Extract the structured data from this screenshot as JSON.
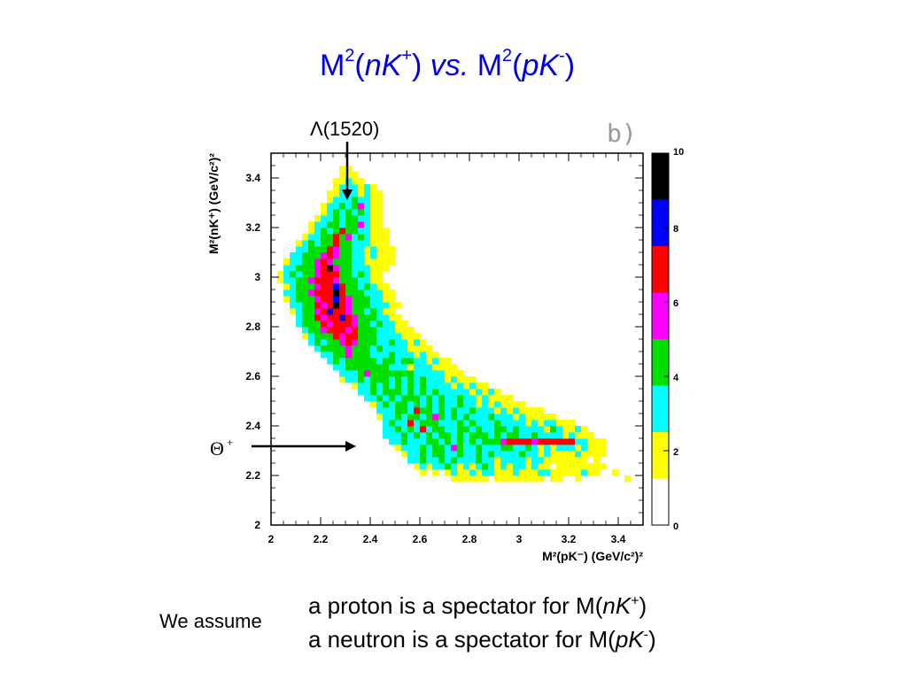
{
  "title": {
    "m1": "M",
    "exp1": "2",
    "p1": "(",
    "nk": "nK",
    "plus": "+",
    "p2": ")",
    "vs": "vs.",
    "m2": "M",
    "exp2": "2",
    "p3": "(",
    "pk": "pK",
    "minus": "-",
    "p4": ")"
  },
  "annotations": {
    "lambda": "Λ(1520)",
    "panel": "b)",
    "theta": "Θ",
    "theta_sup": "+"
  },
  "colors": {
    "title": "#0000e0",
    "palette": [
      "#ffffff",
      "#ffff00",
      "#00ffff",
      "#00e000",
      "#ff00ff",
      "#ff0000",
      "#0000ff",
      "#000000"
    ]
  },
  "footer": {
    "assume": "We assume",
    "line1_pre": "a proton is a spectator for M(",
    "line1_it": "nK",
    "line1_sup": "+",
    "line1_post": ")",
    "line2_pre": "a neutron is a spectator for M(",
    "line2_it": "pK",
    "line2_sup": "-",
    "line2_post": ")"
  },
  "chart_data": {
    "type": "heatmap",
    "xlabel": "M²(pK⁻) (GeV/c²)²",
    "ylabel": "M²(nK⁺) (GeV/c²)²",
    "xlim": [
      2,
      3.5
    ],
    "ylim": [
      2,
      3.5
    ],
    "xticks": [
      "2",
      "2.2",
      "2.4",
      "2.6",
      "2.8",
      "3",
      "3.2",
      "3.4"
    ],
    "yticks": [
      "2",
      "2.2",
      "2.4",
      "2.6",
      "2.8",
      "3",
      "3.2",
      "3.4"
    ],
    "colorbar": {
      "min": 0,
      "max": 10,
      "ticks": [
        "0",
        "2",
        "4",
        "6",
        "8",
        "10"
      ]
    },
    "bin_width": 0.025,
    "note": "counts are estimated per 0.025 x 0.025 bin; rows start at y=2.175",
    "rows": [
      {
        "y": 2.175,
        "x0": 2.725,
        "counts": [
          1,
          1,
          1,
          1,
          1,
          1,
          0,
          1,
          1,
          1,
          1,
          1,
          1,
          1,
          1,
          0,
          1,
          1,
          0,
          0,
          1,
          0,
          0,
          0,
          0,
          0,
          0,
          0,
          1
        ]
      },
      {
        "y": 2.2,
        "x0": 2.6,
        "counts": [
          1,
          0,
          1,
          0,
          1,
          2,
          1,
          1,
          2,
          1,
          2,
          2,
          1,
          1,
          1,
          2,
          1,
          1,
          1,
          2,
          2,
          1,
          1,
          1,
          1,
          1,
          2,
          1,
          1,
          0,
          0,
          1
        ]
      },
      {
        "y": 2.225,
        "x0": 2.575,
        "counts": [
          1,
          2,
          1,
          2,
          2,
          3,
          2,
          1,
          2,
          1,
          2,
          3,
          2,
          1,
          2,
          1,
          2,
          2,
          1,
          2,
          1,
          1,
          0,
          1,
          1,
          1,
          1,
          1,
          1,
          1,
          1
        ]
      },
      {
        "y": 2.25,
        "x0": 2.55,
        "counts": [
          2,
          2,
          3,
          2,
          2,
          3,
          2,
          4,
          2,
          2,
          2,
          3,
          2,
          2,
          1,
          2,
          2,
          2,
          2,
          1,
          2,
          2,
          1,
          1,
          1,
          1,
          1,
          1,
          1,
          0,
          1
        ]
      },
      {
        "y": 2.275,
        "x0": 2.525,
        "counts": [
          1,
          2,
          2,
          3,
          2,
          3,
          4,
          2,
          2,
          3,
          2,
          2,
          3,
          2,
          3,
          2,
          2,
          2,
          2,
          3,
          2,
          2,
          1,
          2,
          1,
          1,
          1,
          1,
          2,
          1,
          1,
          1,
          1
        ]
      },
      {
        "y": 2.3,
        "x0": 2.5,
        "counts": [
          1,
          2,
          2,
          2,
          3,
          2,
          4,
          3,
          2,
          5,
          3,
          2,
          2,
          3,
          2,
          2,
          2,
          3,
          3,
          2,
          2,
          3,
          2,
          1,
          2,
          1,
          2,
          2,
          2,
          1,
          2,
          1,
          1,
          1
        ]
      },
      {
        "y": 2.325,
        "x0": 2.475,
        "counts": [
          2,
          2,
          3,
          2,
          2,
          2,
          3,
          3,
          2,
          3,
          2,
          4,
          2,
          3,
          2,
          3,
          4,
          3,
          5,
          6,
          6,
          6,
          6,
          5,
          6,
          6,
          6,
          6,
          6,
          6,
          2,
          2,
          1,
          1,
          1
        ]
      },
      {
        "y": 2.35,
        "x0": 2.45,
        "counts": [
          2,
          2,
          2,
          3,
          2,
          3,
          2,
          4,
          2,
          3,
          3,
          2,
          3,
          2,
          3,
          4,
          3,
          2,
          3,
          2,
          3,
          3,
          2,
          2,
          3,
          2,
          2,
          2,
          2,
          1,
          2,
          1,
          1,
          1
        ]
      },
      {
        "y": 2.375,
        "x0": 2.45,
        "counts": [
          2,
          2,
          3,
          2,
          3,
          2,
          6,
          2,
          3,
          4,
          2,
          2,
          3,
          3,
          2,
          3,
          2,
          2,
          3,
          3,
          2,
          3,
          2,
          2,
          2,
          2,
          1,
          3,
          2,
          1,
          1,
          2,
          1
        ]
      },
      {
        "y": 2.4,
        "x0": 2.45,
        "counts": [
          2,
          3,
          2,
          2,
          7,
          2,
          3,
          3,
          3,
          2,
          2,
          2,
          3,
          2,
          3,
          2,
          2,
          2,
          3,
          2,
          2,
          2,
          2,
          1,
          2,
          1,
          2,
          2,
          1,
          1,
          1
        ]
      },
      {
        "y": 2.425,
        "x0": 2.425,
        "counts": [
          1,
          2,
          2,
          3,
          2,
          3,
          3,
          2,
          3,
          5,
          3,
          2,
          3,
          2,
          3,
          2,
          2,
          2,
          3,
          2,
          2,
          2,
          1,
          2,
          1,
          1,
          1,
          1,
          1
        ]
      },
      {
        "y": 2.45,
        "x0": 2.425,
        "counts": [
          2,
          2,
          2,
          3,
          3,
          2,
          6,
          3,
          4,
          2,
          3,
          2,
          3,
          2,
          2,
          3,
          2,
          2,
          2,
          1,
          2,
          1,
          2,
          1,
          1,
          1,
          1
        ]
      },
      {
        "y": 2.475,
        "x0": 2.4,
        "counts": [
          1,
          2,
          3,
          2,
          3,
          4,
          2,
          3,
          2,
          3,
          2,
          3,
          2,
          2,
          3,
          2,
          2,
          1,
          2,
          1,
          2,
          1,
          1,
          1,
          1
        ]
      },
      {
        "y": 2.5,
        "x0": 2.375,
        "counts": [
          2,
          2,
          3,
          2,
          3,
          2,
          3,
          4,
          3,
          2,
          3,
          2,
          3,
          2,
          2,
          3,
          2,
          2,
          1,
          2,
          1,
          1,
          1,
          1
        ]
      },
      {
        "y": 2.525,
        "x0": 2.35,
        "counts": [
          2,
          2,
          3,
          2,
          3,
          3,
          3,
          2,
          3,
          2,
          4,
          2,
          3,
          2,
          2,
          2,
          2,
          2,
          1,
          2,
          1,
          2,
          1
        ]
      },
      {
        "y": 2.55,
        "x0": 2.325,
        "counts": [
          1,
          2,
          2,
          3,
          2,
          3,
          2,
          3,
          2,
          3,
          2,
          3,
          2,
          2,
          2,
          2,
          1,
          2,
          1,
          2,
          1,
          1
        ]
      },
      {
        "y": 2.575,
        "x0": 2.275,
        "counts": [
          1,
          2,
          2,
          3,
          2,
          3,
          4,
          3,
          2,
          3,
          2,
          3,
          2,
          3,
          2,
          2,
          2,
          1,
          2,
          1,
          1,
          1
        ]
      },
      {
        "y": 2.6,
        "x0": 2.275,
        "counts": [
          2,
          2,
          2,
          3,
          5,
          3,
          4,
          3,
          3,
          3,
          4,
          3,
          2,
          2,
          2,
          2,
          2,
          1,
          1,
          1
        ]
      },
      {
        "y": 2.625,
        "x0": 2.25,
        "counts": [
          2,
          2,
          3,
          3,
          3,
          3,
          4,
          3,
          3,
          2,
          2,
          2,
          1,
          2,
          2,
          2,
          1,
          1,
          1,
          1
        ]
      },
      {
        "y": 2.65,
        "x0": 2.225,
        "counts": [
          2,
          3,
          2,
          3,
          4,
          3,
          3,
          4,
          2,
          3,
          3,
          2,
          3,
          3,
          2,
          2,
          1,
          2,
          1,
          1
        ]
      },
      {
        "y": 2.675,
        "x0": 2.2,
        "counts": [
          2,
          2,
          3,
          4,
          5,
          3,
          3,
          3,
          2,
          2,
          2,
          3,
          2,
          2,
          2,
          1,
          2,
          1,
          1
        ]
      },
      {
        "y": 2.7,
        "x0": 2.175,
        "counts": [
          2,
          3,
          3,
          3,
          4,
          5,
          4,
          3,
          3,
          2,
          3,
          2,
          2,
          2,
          2,
          1,
          1,
          1,
          1
        ]
      },
      {
        "y": 2.725,
        "x0": 2.15,
        "counts": [
          2,
          3,
          2,
          3,
          4,
          5,
          6,
          5,
          4,
          3,
          3,
          2,
          2,
          3,
          2,
          2,
          1,
          2,
          1
        ]
      },
      {
        "y": 2.75,
        "x0": 2.125,
        "counts": [
          1,
          2,
          3,
          3,
          4,
          6,
          5,
          7,
          6,
          4,
          3,
          3,
          2,
          2,
          2,
          2,
          1,
          1,
          1
        ]
      },
      {
        "y": 2.775,
        "x0": 2.125,
        "counts": [
          2,
          3,
          4,
          5,
          6,
          7,
          6,
          5,
          6,
          4,
          3,
          3,
          2,
          2,
          2,
          1,
          1,
          1
        ]
      },
      {
        "y": 2.8,
        "x0": 2.1,
        "counts": [
          2,
          3,
          3,
          4,
          6,
          5,
          7,
          6,
          7,
          5,
          4,
          3,
          2,
          3,
          2,
          2,
          1,
          1
        ]
      },
      {
        "y": 2.825,
        "x0": 2.1,
        "counts": [
          2,
          3,
          4,
          6,
          5,
          7,
          6,
          8,
          6,
          5,
          4,
          3,
          3,
          2,
          2,
          1,
          1
        ]
      },
      {
        "y": 2.85,
        "x0": 2.075,
        "counts": [
          1,
          2,
          3,
          4,
          5,
          6,
          8,
          7,
          6,
          5,
          4,
          3,
          2,
          3,
          2,
          1,
          1
        ]
      },
      {
        "y": 2.875,
        "x0": 2.075,
        "counts": [
          2,
          2,
          3,
          4,
          6,
          5,
          7,
          9,
          6,
          5,
          3,
          4,
          3,
          2,
          2,
          2,
          1,
          1
        ]
      },
      {
        "y": 2.9,
        "x0": 2.05,
        "counts": [
          1,
          2,
          3,
          3,
          4,
          5,
          6,
          7,
          8,
          6,
          5,
          4,
          3,
          3,
          2,
          2,
          1,
          1
        ]
      },
      {
        "y": 2.925,
        "x0": 2.05,
        "counts": [
          2,
          2,
          3,
          4,
          5,
          6,
          7,
          6,
          9,
          6,
          4,
          3,
          3,
          2,
          2,
          2,
          1,
          1
        ]
      },
      {
        "y": 2.95,
        "x0": 2.05,
        "counts": [
          1,
          2,
          3,
          3,
          4,
          5,
          6,
          7,
          8,
          6,
          4,
          3,
          2,
          3,
          2,
          1,
          1
        ]
      },
      {
        "y": 2.975,
        "x0": 2.025,
        "counts": [
          1,
          2,
          2,
          3,
          4,
          5,
          6,
          7,
          6,
          5,
          4,
          3,
          3,
          2,
          2,
          1,
          1
        ]
      },
      {
        "y": 3.0,
        "x0": 2.025,
        "counts": [
          1,
          2,
          3,
          2,
          3,
          4,
          5,
          6,
          7,
          6,
          4,
          3,
          2,
          3,
          2,
          1,
          1
        ]
      },
      {
        "y": 3.025,
        "x0": 2.05,
        "counts": [
          2,
          2,
          3,
          4,
          3,
          5,
          6,
          9,
          5,
          4,
          3,
          2,
          2,
          2,
          1,
          1,
          1
        ]
      },
      {
        "y": 3.05,
        "x0": 2.05,
        "counts": [
          1,
          2,
          2,
          3,
          4,
          5,
          6,
          5,
          4,
          3,
          3,
          2,
          2,
          1,
          1,
          1,
          1,
          1
        ]
      },
      {
        "y": 3.075,
        "x0": 2.075,
        "counts": [
          2,
          2,
          3,
          3,
          4,
          5,
          6,
          5,
          3,
          3,
          2,
          2,
          1,
          2,
          1,
          1,
          1
        ]
      },
      {
        "y": 3.1,
        "x0": 2.1,
        "counts": [
          2,
          2,
          3,
          3,
          4,
          6,
          5,
          3,
          3,
          2,
          2,
          1,
          2,
          1,
          1,
          1
        ]
      },
      {
        "y": 3.125,
        "x0": 2.1,
        "counts": [
          1,
          2,
          3,
          2,
          4,
          3,
          6,
          3,
          4,
          2,
          2,
          2,
          1,
          1,
          1
        ]
      },
      {
        "y": 3.15,
        "x0": 2.125,
        "counts": [
          1,
          2,
          2,
          3,
          3,
          6,
          3,
          5,
          2,
          3,
          2,
          1,
          1,
          1
        ]
      },
      {
        "y": 3.175,
        "x0": 2.15,
        "counts": [
          1,
          2,
          3,
          2,
          4,
          6,
          3,
          3,
          2,
          2,
          1,
          1,
          1
        ]
      },
      {
        "y": 3.2,
        "x0": 2.15,
        "counts": [
          1,
          2,
          2,
          3,
          3,
          2,
          3,
          3,
          5,
          2,
          1,
          1
        ]
      },
      {
        "y": 3.225,
        "x0": 2.175,
        "counts": [
          1,
          2,
          2,
          3,
          2,
          3,
          4,
          2,
          2,
          1,
          1
        ]
      },
      {
        "y": 3.25,
        "x0": 2.2,
        "counts": [
          1,
          2,
          3,
          2,
          3,
          2,
          3,
          2,
          1,
          1
        ]
      },
      {
        "y": 3.275,
        "x0": 2.2,
        "counts": [
          1,
          2,
          2,
          3,
          2,
          3,
          5,
          2,
          1,
          1
        ]
      },
      {
        "y": 3.3,
        "x0": 2.225,
        "counts": [
          1,
          2,
          2,
          2,
          3,
          2,
          2,
          1,
          1
        ]
      },
      {
        "y": 3.325,
        "x0": 2.225,
        "counts": [
          1,
          1,
          2,
          2,
          2,
          1,
          2,
          1,
          1
        ]
      },
      {
        "y": 3.35,
        "x0": 2.25,
        "counts": [
          1,
          2,
          2,
          2,
          1,
          2,
          1
        ]
      },
      {
        "y": 3.375,
        "x0": 2.25,
        "counts": [
          1,
          1,
          2,
          1,
          1
        ]
      },
      {
        "y": 3.4,
        "x0": 2.275,
        "counts": [
          1,
          1,
          1
        ]
      },
      {
        "y": 3.425,
        "x0": 2.275,
        "counts": [
          1,
          1
        ]
      }
    ]
  }
}
